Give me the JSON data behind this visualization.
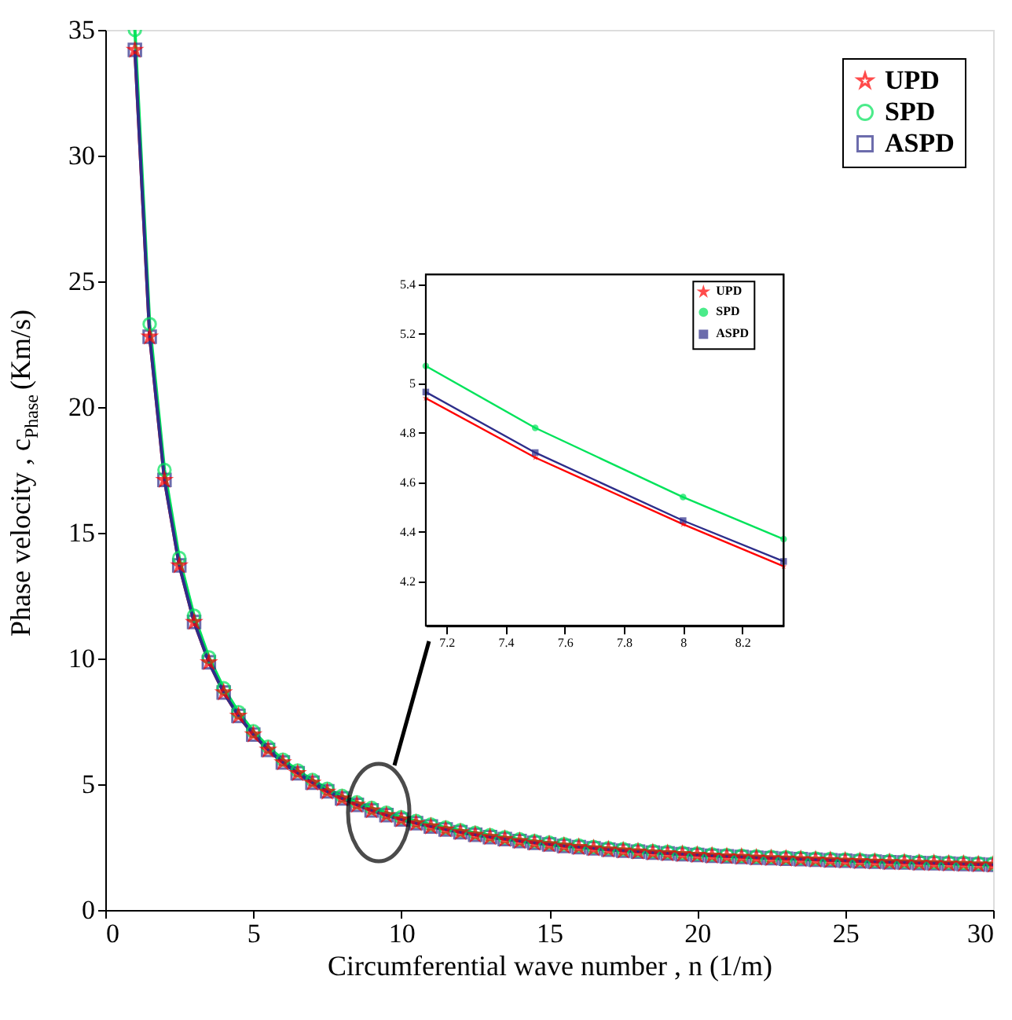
{
  "chart_data": [
    {
      "type": "line",
      "xlabel": "Circumferential wave number , n (1/m)",
      "ylabel": "Phase velocity , c$_{Phase}$ (Km/s)",
      "xlim": [
        0,
        30
      ],
      "ylim": [
        0,
        35
      ],
      "xticks": [
        0,
        5,
        10,
        15,
        20,
        25,
        30
      ],
      "yticks": [
        0,
        5,
        10,
        15,
        20,
        25,
        30,
        35
      ],
      "legend": "top right",
      "x": [
        1,
        1.5,
        2,
        2.5,
        3,
        3.5,
        4,
        4.5,
        5,
        5.5,
        6,
        6.5,
        7,
        7.5,
        8,
        8.5,
        9,
        9.5,
        10,
        10.5,
        11,
        11.5,
        12,
        12.5,
        13,
        13.5,
        14,
        14.5,
        15,
        15.5,
        16,
        16.5,
        17,
        17.5,
        18,
        18.5,
        19,
        19.5,
        20,
        20.5,
        21,
        21.5,
        22,
        22.5,
        23,
        23.5,
        24,
        24.5,
        25,
        25.5,
        26,
        26.5,
        27,
        27.5,
        28,
        28.5,
        29,
        29.5,
        30
      ],
      "series": [
        {
          "name": "UPD",
          "color": "#ff0000",
          "marker": "star",
          "values": [
            34.2,
            22.8,
            17.1,
            13.7,
            11.45,
            9.85,
            8.65,
            7.72,
            6.98,
            6.37,
            5.87,
            5.44,
            5.06,
            4.7,
            4.43,
            4.18,
            3.96,
            3.77,
            3.6,
            3.45,
            3.32,
            3.2,
            3.09,
            2.99,
            2.9,
            2.82,
            2.74,
            2.67,
            2.61,
            2.55,
            2.5,
            2.45,
            2.4,
            2.36,
            2.32,
            2.28,
            2.25,
            2.22,
            2.19,
            2.16,
            2.13,
            2.11,
            2.08,
            2.06,
            2.04,
            2.02,
            2.0,
            1.98,
            1.96,
            1.94,
            1.92,
            1.9,
            1.89,
            1.87,
            1.86,
            1.84,
            1.83,
            1.81,
            1.8
          ]
        },
        {
          "name": "SPD",
          "color": "#00e35a",
          "marker": "circle",
          "values": [
            35.0,
            23.3,
            17.5,
            14.0,
            11.7,
            10.05,
            8.82,
            7.87,
            7.11,
            6.49,
            5.98,
            5.55,
            5.17,
            4.82,
            4.54,
            4.28,
            4.06,
            3.87,
            3.69,
            3.54,
            3.4,
            3.28,
            3.17,
            3.07,
            2.98,
            2.89,
            2.81,
            2.74,
            2.68,
            2.62,
            2.56,
            2.51,
            2.46,
            2.42,
            2.38,
            2.34,
            2.31,
            2.27,
            2.24,
            2.21,
            2.18,
            2.16,
            2.13,
            2.11,
            2.09,
            2.07,
            2.05,
            2.03,
            2.01,
            1.99,
            1.97,
            1.95,
            1.94,
            1.92,
            1.91,
            1.89,
            1.88,
            1.86,
            1.85
          ]
        },
        {
          "name": "ASPD",
          "color": "#2e2e8a",
          "marker": "square",
          "values": [
            34.2,
            22.8,
            17.1,
            13.7,
            11.45,
            9.85,
            8.65,
            7.72,
            6.98,
            6.37,
            5.87,
            5.44,
            5.06,
            4.72,
            4.44,
            4.18,
            3.96,
            3.77,
            3.6,
            3.45,
            3.32,
            3.2,
            3.09,
            2.99,
            2.9,
            2.82,
            2.74,
            2.67,
            2.61,
            2.55,
            2.5,
            2.45,
            2.4,
            2.36,
            2.32,
            2.28,
            2.25,
            2.22,
            2.19,
            2.16,
            2.13,
            2.11,
            2.08,
            2.06,
            2.04,
            2.02,
            2.0,
            1.98,
            1.96,
            1.94,
            1.92,
            1.9,
            1.89,
            1.87,
            1.86,
            1.84,
            1.83,
            1.81,
            1.8
          ]
        }
      ]
    },
    {
      "type": "line",
      "xlim": [
        7.13,
        8.34
      ],
      "ylim": [
        4.02,
        5.44
      ],
      "xticks": [
        {
          "value": 7.2,
          "label": "7.2"
        },
        {
          "value": 7.4,
          "label": "7.4"
        },
        {
          "value": 7.6,
          "label": "7.6"
        },
        {
          "value": 7.8,
          "label": "7.8"
        },
        8,
        {
          "value": 8.2,
          "label": "8.2"
        }
      ],
      "yticks": [
        {
          "value": 4.2,
          "label": "4.2"
        },
        {
          "value": 4.4,
          "label": "4.4"
        },
        {
          "value": 4.6,
          "label": "4.6"
        },
        {
          "value": 4.8,
          "label": "4.8"
        },
        5,
        {
          "value": 5.2,
          "label": "5.2"
        },
        {
          "value": 5.4,
          "label": "5.4"
        }
      ],
      "legend": "top right",
      "x": [
        7.13,
        7.5,
        8,
        8.34
      ],
      "series": [
        {
          "name": "UPD",
          "color": "#ff0000",
          "marker": "star",
          "values": [
            4.94,
            4.7,
            4.43,
            4.26
          ]
        },
        {
          "name": "SPD",
          "color": "#00e35a",
          "marker": "circle",
          "values": [
            5.07,
            4.82,
            4.54,
            4.37
          ]
        },
        {
          "name": "ASPD",
          "color": "#2e2e8a",
          "marker": "square",
          "values": [
            4.965,
            4.72,
            4.445,
            4.28
          ]
        }
      ]
    }
  ]
}
